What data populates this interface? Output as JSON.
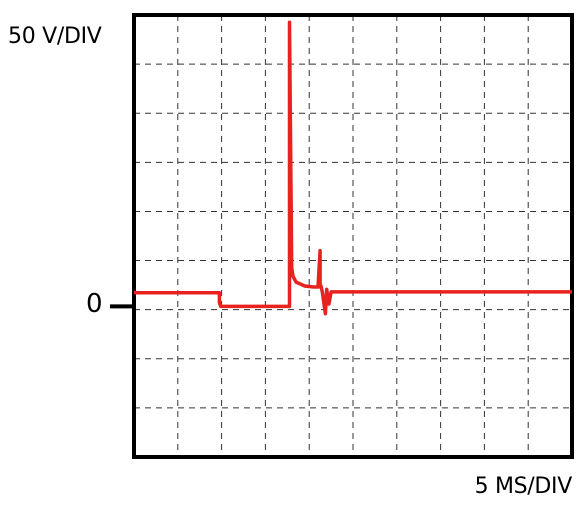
{
  "chart_data": {
    "type": "line",
    "title": "",
    "ylabel": "50 V/DIV",
    "xlabel": "5 MS/DIV",
    "zero_label": "0",
    "grid": true,
    "grid_divisions": {
      "x": 10,
      "y": 9
    },
    "x_unit": "div",
    "y_unit": "div",
    "xlim": [
      0,
      10
    ],
    "ylim": [
      -3.1,
      6.0
    ],
    "colors": {
      "trace": "#e8221f",
      "grid": "#333333",
      "frame": "#000000"
    },
    "series": [
      {
        "x": [
          0,
          1.95,
          1.95,
          1.98,
          3.55,
          3.55,
          3.6,
          3.63,
          3.7,
          3.9,
          4.1,
          4.2,
          4.25,
          4.25,
          4.27,
          4.3,
          4.37,
          4.4,
          4.45,
          4.5,
          4.55,
          10
        ],
        "y": [
          0.28,
          0.28,
          0.08,
          0.0,
          0.0,
          5.85,
          0.8,
          0.62,
          0.5,
          0.42,
          0.4,
          0.4,
          1.15,
          0.4,
          0.42,
          0.3,
          -0.15,
          0.35,
          0.05,
          0.3,
          0.3,
          0.3
        ]
      }
    ]
  }
}
